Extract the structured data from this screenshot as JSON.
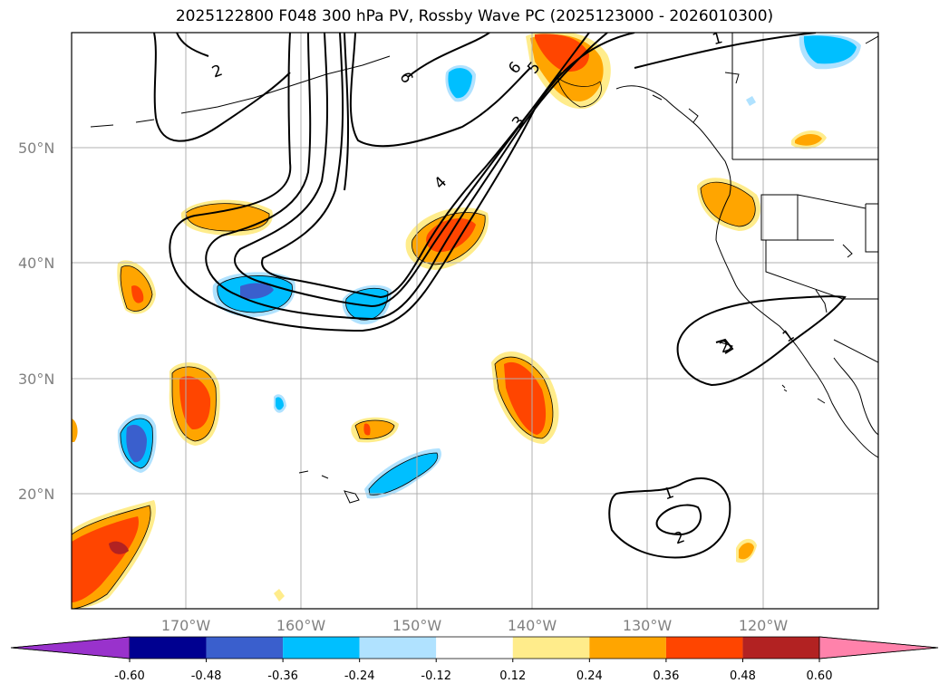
{
  "title": "2025122800 F048 300 hPa PV, Rossby Wave PC (2025123000 - 2026010300)",
  "map": {
    "lat_labels": [
      "50°N",
      "40°N",
      "30°N",
      "20°N"
    ],
    "lon_labels": [
      "170°W",
      "160°W",
      "150°W",
      "140°W",
      "130°W",
      "120°W"
    ],
    "contour_labels": [
      "2",
      "6",
      "6",
      "5",
      "1",
      "3",
      "4",
      "1",
      "2",
      "1",
      "2"
    ]
  },
  "colorbar": {
    "ticks": [
      "-0.60",
      "-0.48",
      "-0.36",
      "-0.24",
      "-0.12",
      "0.12",
      "0.24",
      "0.36",
      "0.48",
      "0.60"
    ],
    "colors": {
      "under": "#9932cc",
      "c1": "#000090",
      "c2": "#3a5fcd",
      "c3": "#00bfff",
      "c4": "#b0e2ff",
      "c5": "#ffffff",
      "c6": "#ffec8b",
      "c7": "#ffa500",
      "c8": "#ff4500",
      "c9": "#b22222",
      "over": "#ff82ab"
    }
  }
}
